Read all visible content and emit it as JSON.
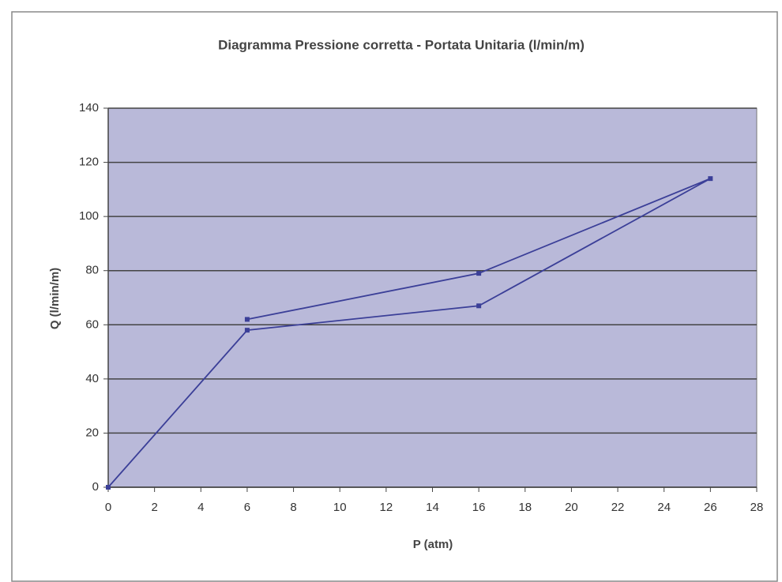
{
  "chart_data": {
    "type": "line",
    "title": "Diagramma Pressione corretta - Portata Unitaria (l/min/m)",
    "x_label": "P (atm)",
    "y_label": "Q (l/min/m)",
    "series": [
      {
        "color": "#3b3f98",
        "x": [
          0,
          6,
          16,
          26,
          16,
          6
        ],
        "values": [
          0,
          58,
          67,
          114,
          79,
          62
        ]
      }
    ],
    "xlim": [
      0,
      28
    ],
    "xticks": [
      0,
      2,
      4,
      6,
      8,
      10,
      12,
      14,
      16,
      18,
      20,
      22,
      24,
      26,
      28
    ],
    "ylim": [
      0,
      140
    ],
    "yticks": [
      0,
      20,
      40,
      60,
      80,
      100,
      120,
      140
    ],
    "grid": true,
    "plot_background": "#b9b9d9"
  }
}
